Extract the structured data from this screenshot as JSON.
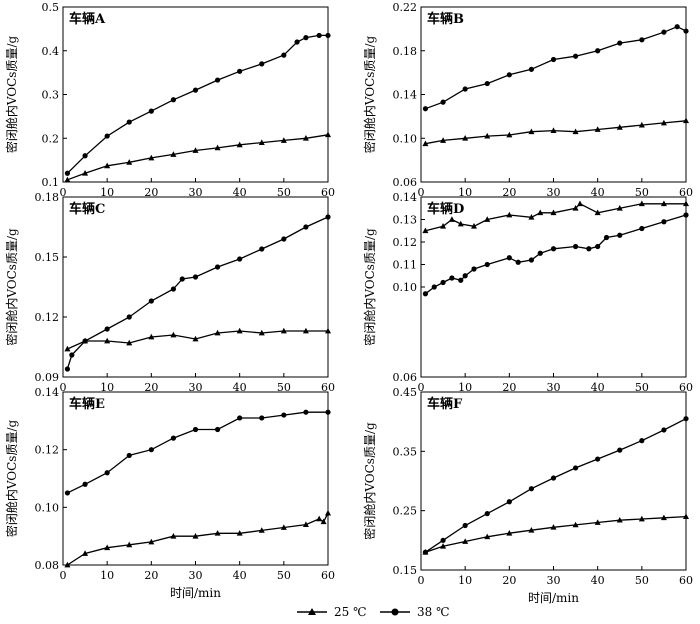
{
  "legend": {
    "items": [
      {
        "label": "25 ℃",
        "marker": "triangle"
      },
      {
        "label": "38 ℃",
        "marker": "circle"
      }
    ]
  },
  "chart_data": [
    {
      "type": "line",
      "title": "车辆A",
      "xlabel": "",
      "ylabel": "密闭舱内VOCs质量/g",
      "xlim": [
        0,
        60
      ],
      "ylim": [
        0.1,
        0.5
      ],
      "xticks": [
        "0",
        "10",
        "20",
        "30",
        "40",
        "50",
        "60"
      ],
      "yticks": [
        "0.1",
        "0.2",
        "0.3",
        "0.4",
        "0.5"
      ],
      "series": [
        {
          "name": "25 ℃",
          "marker": "triangle",
          "x": [
            1,
            5,
            10,
            15,
            20,
            25,
            30,
            35,
            40,
            45,
            50,
            55,
            60
          ],
          "y": [
            0.105,
            0.12,
            0.137,
            0.145,
            0.155,
            0.163,
            0.172,
            0.178,
            0.185,
            0.19,
            0.195,
            0.2,
            0.208
          ]
        },
        {
          "name": "38 ℃",
          "marker": "circle",
          "x": [
            1,
            5,
            10,
            15,
            20,
            25,
            30,
            35,
            40,
            45,
            50,
            53,
            55,
            58,
            60
          ],
          "y": [
            0.12,
            0.16,
            0.205,
            0.237,
            0.262,
            0.288,
            0.31,
            0.333,
            0.353,
            0.37,
            0.39,
            0.42,
            0.43,
            0.435,
            0.435
          ]
        }
      ]
    },
    {
      "type": "line",
      "title": "车辆B",
      "xlabel": "",
      "ylabel": "密闭舱内VOCs质量/g",
      "xlim": [
        0,
        60
      ],
      "ylim": [
        0.06,
        0.22
      ],
      "xticks": [
        "0",
        "10",
        "20",
        "30",
        "40",
        "50",
        "60"
      ],
      "yticks": [
        "0.06",
        "0.10",
        "0.14",
        "0.18",
        "0.22"
      ],
      "series": [
        {
          "name": "25 ℃",
          "marker": "triangle",
          "x": [
            1,
            5,
            10,
            15,
            20,
            25,
            30,
            35,
            40,
            45,
            50,
            55,
            60
          ],
          "y": [
            0.095,
            0.098,
            0.1,
            0.102,
            0.103,
            0.106,
            0.107,
            0.106,
            0.108,
            0.11,
            0.112,
            0.114,
            0.116
          ]
        },
        {
          "name": "38 ℃",
          "marker": "circle",
          "x": [
            1,
            5,
            10,
            15,
            20,
            25,
            30,
            35,
            40,
            45,
            50,
            55,
            58,
            60
          ],
          "y": [
            0.127,
            0.133,
            0.145,
            0.15,
            0.158,
            0.163,
            0.172,
            0.175,
            0.18,
            0.187,
            0.19,
            0.197,
            0.202,
            0.198
          ]
        }
      ]
    },
    {
      "type": "line",
      "title": "车辆C",
      "xlabel": "",
      "ylabel": "密闭舱内VOCs质量/g",
      "xlim": [
        0,
        60
      ],
      "ylim": [
        0.09,
        0.18
      ],
      "xticks": [
        "0",
        "10",
        "20",
        "30",
        "40",
        "50",
        "60"
      ],
      "yticks": [
        "0.09",
        "0.12",
        "0.15",
        "0.18"
      ],
      "series": [
        {
          "name": "25 ℃",
          "marker": "triangle",
          "x": [
            1,
            5,
            10,
            15,
            20,
            25,
            30,
            35,
            40,
            45,
            50,
            55,
            60
          ],
          "y": [
            0.104,
            0.108,
            0.108,
            0.107,
            0.11,
            0.111,
            0.109,
            0.112,
            0.113,
            0.112,
            0.113,
            0.113,
            0.113
          ]
        },
        {
          "name": "38 ℃",
          "marker": "circle",
          "x": [
            1,
            2,
            5,
            10,
            15,
            20,
            25,
            27,
            30,
            35,
            40,
            45,
            50,
            55,
            60
          ],
          "y": [
            0.094,
            0.101,
            0.108,
            0.114,
            0.12,
            0.128,
            0.134,
            0.139,
            0.14,
            0.145,
            0.149,
            0.154,
            0.159,
            0.165,
            0.17
          ]
        }
      ]
    },
    {
      "type": "line",
      "title": "车辆D",
      "xlabel": "",
      "ylabel": "密闭舱内VOCs质量/g",
      "xlim": [
        0,
        60
      ],
      "ylim": [
        0.06,
        0.14
      ],
      "xticks": [
        "0",
        "10",
        "20",
        "30",
        "40",
        "50",
        "60"
      ],
      "yticks": [
        "0.06",
        "0.10",
        "0.11",
        "0.12",
        "0.13",
        "0.14"
      ],
      "series": [
        {
          "name": "25 ℃",
          "marker": "triangle",
          "x": [
            1,
            5,
            7,
            9,
            12,
            15,
            20,
            25,
            27,
            30,
            35,
            36,
            40,
            45,
            50,
            55,
            60
          ],
          "y": [
            0.125,
            0.127,
            0.13,
            0.128,
            0.127,
            0.13,
            0.132,
            0.131,
            0.133,
            0.133,
            0.135,
            0.137,
            0.133,
            0.135,
            0.137,
            0.137,
            0.137
          ]
        },
        {
          "name": "38 ℃",
          "marker": "circle",
          "x": [
            1,
            3,
            5,
            7,
            9,
            10,
            12,
            15,
            20,
            22,
            25,
            27,
            30,
            35,
            38,
            40,
            42,
            45,
            50,
            55,
            60
          ],
          "y": [
            0.097,
            0.1,
            0.102,
            0.104,
            0.103,
            0.105,
            0.108,
            0.11,
            0.113,
            0.111,
            0.112,
            0.115,
            0.117,
            0.118,
            0.117,
            0.118,
            0.122,
            0.123,
            0.126,
            0.129,
            0.132
          ]
        }
      ]
    },
    {
      "type": "line",
      "title": "车辆E",
      "xlabel": "时间/min",
      "ylabel": "密闭舱内VOCs质量/g",
      "xlim": [
        0,
        60
      ],
      "ylim": [
        0.08,
        0.14
      ],
      "xticks": [
        "0",
        "10",
        "20",
        "30",
        "40",
        "50",
        "60"
      ],
      "yticks": [
        "0.08",
        "0.10",
        "0.12",
        "0.14"
      ],
      "series": [
        {
          "name": "25 ℃",
          "marker": "triangle",
          "x": [
            1,
            5,
            10,
            15,
            20,
            25,
            30,
            35,
            40,
            45,
            50,
            55,
            58,
            59,
            60
          ],
          "y": [
            0.08,
            0.084,
            0.086,
            0.087,
            0.088,
            0.09,
            0.09,
            0.091,
            0.091,
            0.092,
            0.093,
            0.094,
            0.096,
            0.095,
            0.098
          ]
        },
        {
          "name": "38 ℃",
          "marker": "circle",
          "x": [
            1,
            5,
            10,
            15,
            20,
            25,
            30,
            35,
            40,
            45,
            50,
            55,
            60
          ],
          "y": [
            0.105,
            0.108,
            0.112,
            0.118,
            0.12,
            0.124,
            0.127,
            0.127,
            0.131,
            0.131,
            0.132,
            0.133,
            0.133
          ]
        }
      ]
    },
    {
      "type": "line",
      "title": "车辆F",
      "xlabel": "时间/min",
      "ylabel": "密闭舱内VOCs质量/g",
      "xlim": [
        0,
        60
      ],
      "ylim": [
        0.15,
        0.45
      ],
      "xticks": [
        "0",
        "10",
        "20",
        "30",
        "40",
        "50",
        "60"
      ],
      "yticks": [
        "0.15",
        "0.25",
        "0.35",
        "0.45"
      ],
      "series": [
        {
          "name": "25 ℃",
          "marker": "triangle",
          "x": [
            1,
            5,
            10,
            15,
            20,
            25,
            30,
            35,
            40,
            45,
            50,
            55,
            60
          ],
          "y": [
            0.18,
            0.19,
            0.198,
            0.206,
            0.212,
            0.217,
            0.222,
            0.226,
            0.23,
            0.234,
            0.236,
            0.238,
            0.24
          ]
        },
        {
          "name": "38 ℃",
          "marker": "circle",
          "x": [
            1,
            5,
            10,
            15,
            20,
            25,
            30,
            35,
            40,
            45,
            50,
            55,
            60
          ],
          "y": [
            0.18,
            0.2,
            0.225,
            0.245,
            0.265,
            0.287,
            0.305,
            0.322,
            0.337,
            0.352,
            0.368,
            0.386,
            0.405
          ]
        }
      ]
    }
  ]
}
